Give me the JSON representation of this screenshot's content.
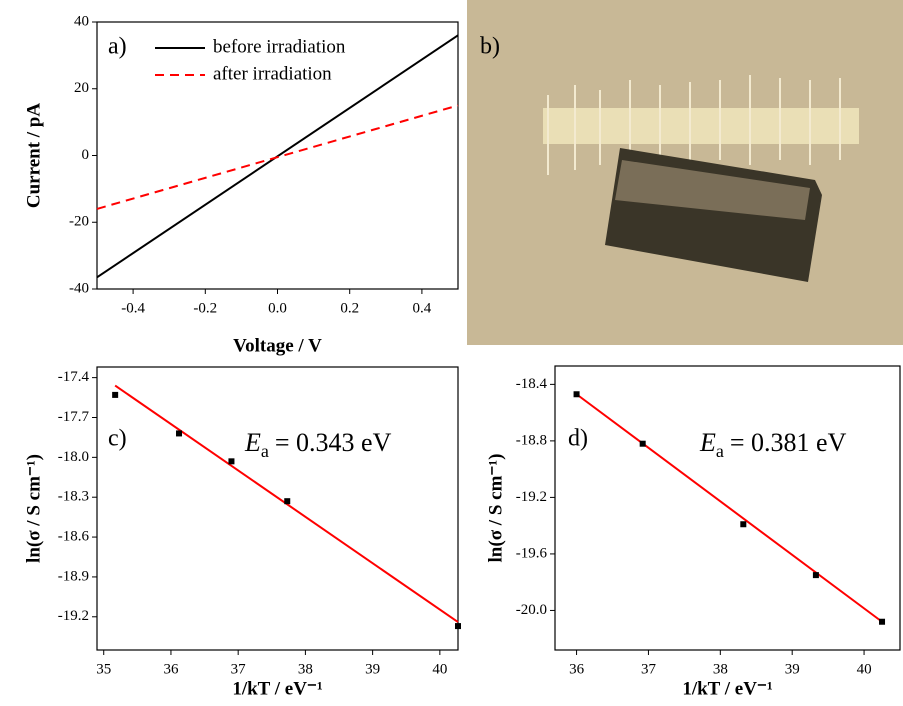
{
  "photo": {
    "label": "b)"
  },
  "chart_data": [
    {
      "type": "line",
      "label": "a)",
      "x_label": "Voltage / V",
      "y_label": "Current / pA",
      "x": [
        -0.5,
        0.5
      ],
      "series": [
        {
          "name": "before irradiation",
          "color": "#000000",
          "dash": false,
          "values": [
            -36.5,
            36
          ]
        },
        {
          "name": "after irradiation",
          "color": "#ff0000",
          "dash": true,
          "values": [
            -16,
            15
          ]
        }
      ],
      "xlim": [
        -0.5,
        0.5
      ],
      "xticks": [
        -0.4,
        -0.2,
        {
          "value": 0,
          "label": "0.0"
        },
        0.2,
        0.4
      ],
      "ylim": [
        -40,
        40
      ],
      "yticks": [
        -40,
        -20,
        0,
        20,
        40
      ],
      "legend": "upper-left"
    },
    {
      "type": "scatter",
      "label": "c)",
      "x_label": "1/kT / eV⁻¹",
      "y_label": "ln(σ / S cm⁻¹)",
      "points": {
        "color": "#000000",
        "x": [
          35.17,
          36.12,
          36.9,
          37.73,
          40.27
        ],
        "y": [
          -17.53,
          -17.82,
          -18.03,
          -18.33,
          -19.27
        ]
      },
      "fit_line": {
        "color": "#ff0000",
        "x": [
          35.17,
          40.27
        ],
        "y": [
          -17.46,
          -19.24
        ]
      },
      "annotation": {
        "symbol": "E",
        "subscript": "a",
        "text": "= 0.343 eV"
      },
      "xlim": [
        34.9,
        40.27
      ],
      "xticks": [
        35,
        36,
        37,
        38,
        39,
        40
      ],
      "ylim": [
        -19.45,
        -17.32
      ],
      "yticks": [
        -17.4,
        -17.7,
        {
          "value": -18,
          "label": "-18.0"
        },
        -18.3,
        -18.6,
        -18.9,
        -19.2
      ]
    },
    {
      "type": "scatter",
      "label": "d)",
      "x_label": "1/kT / eV⁻¹",
      "y_label": "ln(σ / S cm⁻¹)",
      "points": {
        "color": "#000000",
        "x": [
          36.0,
          36.92,
          38.32,
          39.33,
          40.25
        ],
        "y": [
          -18.47,
          -18.82,
          -19.39,
          -19.75,
          -20.08
        ]
      },
      "fit_line": {
        "color": "#ff0000",
        "x": [
          36.0,
          40.25
        ],
        "y": [
          -18.47,
          -20.08
        ]
      },
      "annotation": {
        "symbol": "E",
        "subscript": "a",
        "text": "= 0.381 eV"
      },
      "xlim": [
        35.7,
        40.5
      ],
      "xticks": [
        36,
        37,
        38,
        39,
        40
      ],
      "ylim": [
        -20.28,
        -18.27
      ],
      "yticks": [
        -18.4,
        -18.8,
        -19.2,
        -19.6,
        {
          "value": -20,
          "label": "-20.0"
        }
      ]
    }
  ]
}
